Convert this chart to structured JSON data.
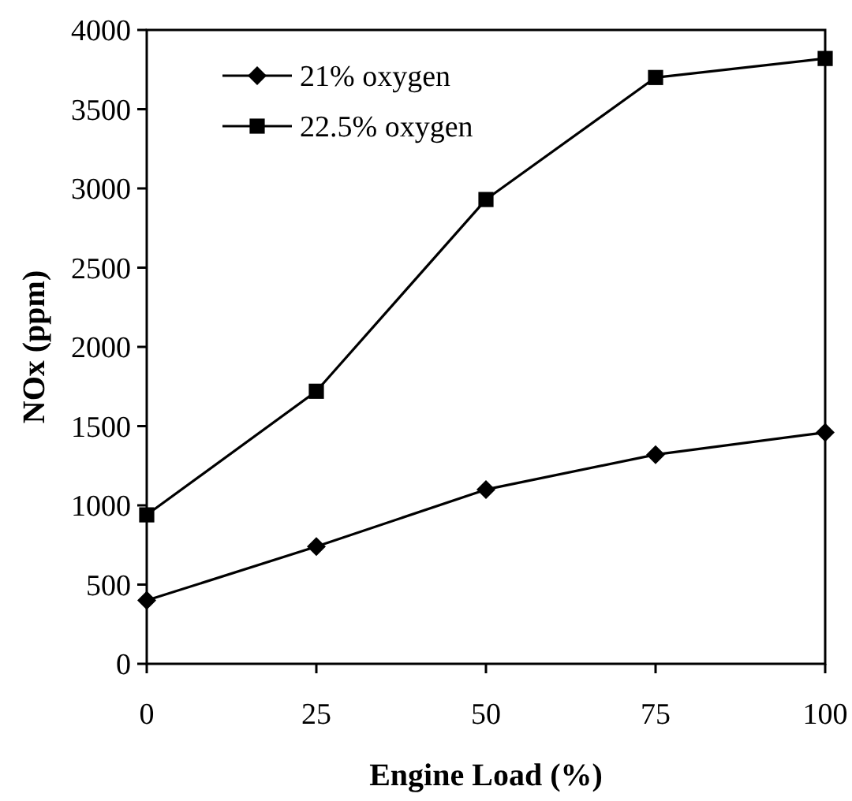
{
  "chart_data": {
    "type": "line",
    "xlabel": "Engine Load (%)",
    "ylabel": "NOx (ppm)",
    "x": [
      0,
      25,
      50,
      75,
      100
    ],
    "series": [
      {
        "name": "21% oxygen",
        "color": "#000000",
        "marker": "diamond",
        "values": [
          400,
          740,
          1100,
          1320,
          1460
        ]
      },
      {
        "name": "22.5% oxygen",
        "color": "#000000",
        "marker": "square",
        "values": [
          940,
          1720,
          2930,
          3700,
          3820
        ]
      }
    ],
    "xlim": [
      0,
      100
    ],
    "xticks": [
      0,
      25,
      50,
      75,
      100
    ],
    "ylim": [
      0,
      4000
    ],
    "yticks": [
      0,
      500,
      1000,
      1500,
      2000,
      2500,
      3000,
      3500,
      4000
    ],
    "grid": false,
    "legend": "top left",
    "line_style": "solid"
  }
}
